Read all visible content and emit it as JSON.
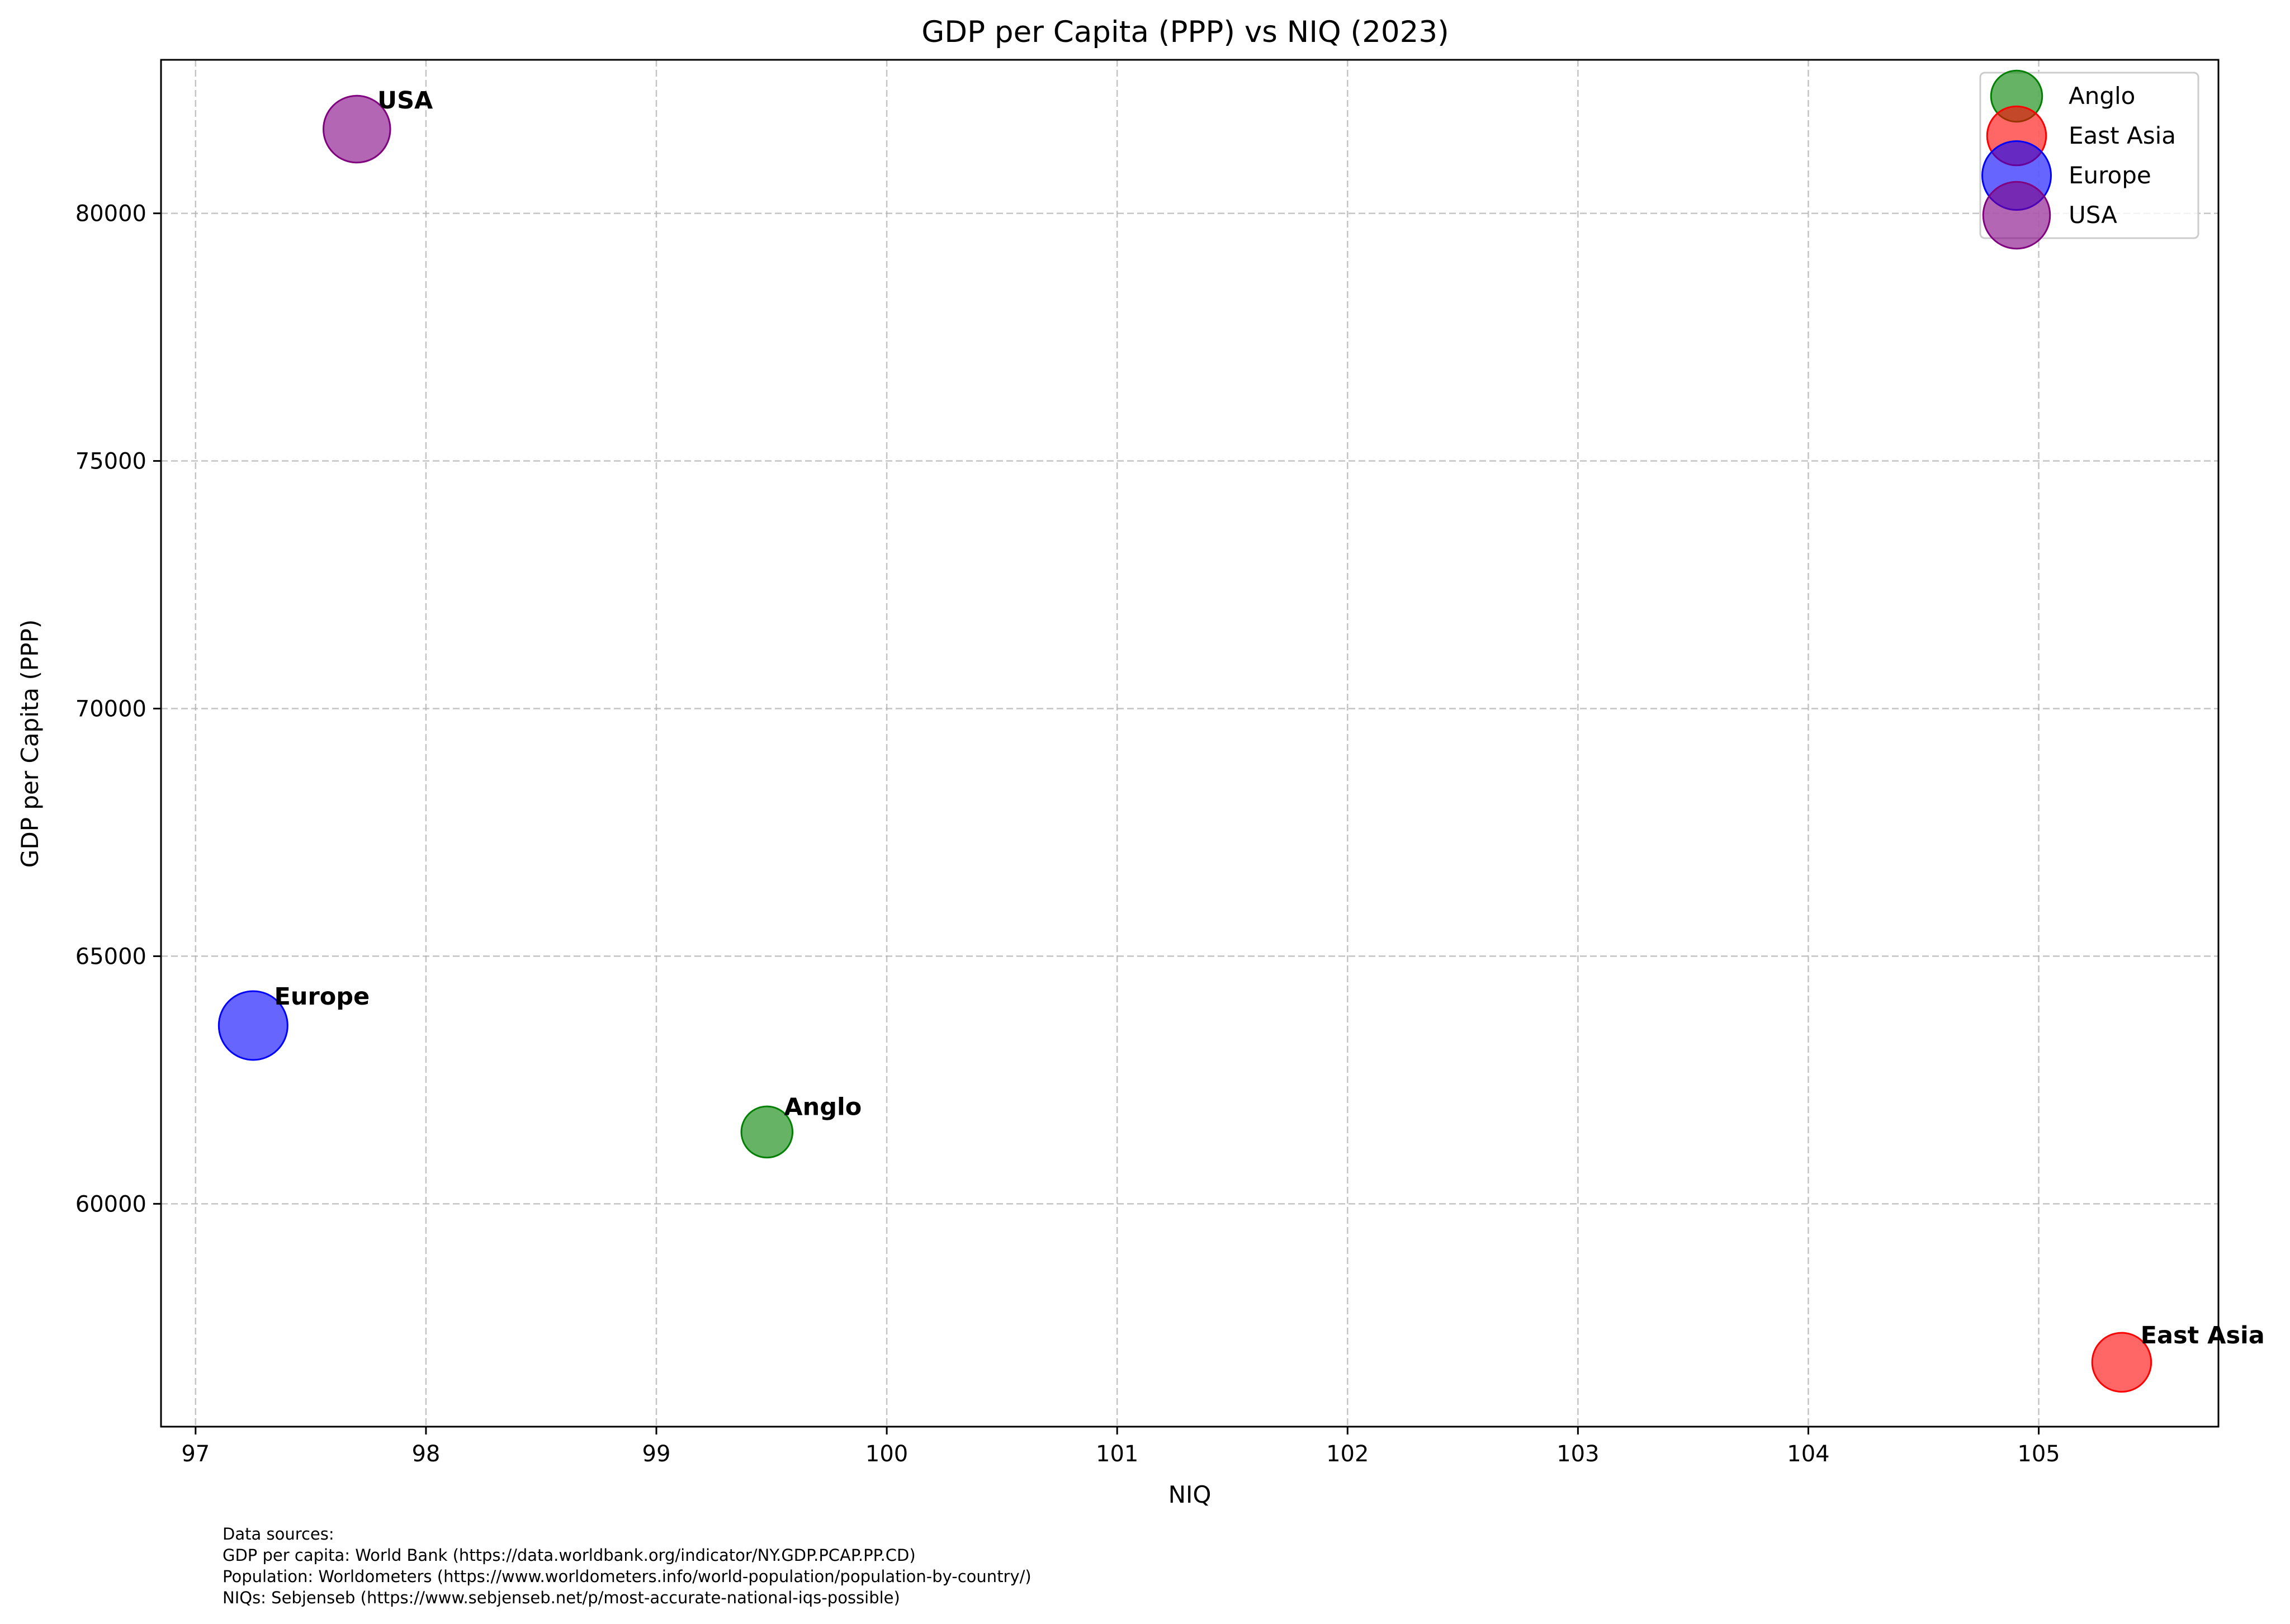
{
  "chart_data": {
    "type": "scatter",
    "title": "GDP per Capita (PPP) vs NIQ (2023)",
    "xlabel": "NIQ",
    "ylabel": "GDP per Capita (PPP)",
    "xlim": [
      96.85,
      105.78
    ],
    "ylim": [
      55500,
      83100
    ],
    "xticks": [
      "97",
      "98",
      "99",
      "100",
      "101",
      "102",
      "103",
      "104",
      "105"
    ],
    "yticks": [
      "60000",
      "65000",
      "70000",
      "75000",
      "80000"
    ],
    "grid": true,
    "legend_position": "top-right",
    "series": [
      {
        "name": "Anglo",
        "label": "Anglo",
        "x": 99.48,
        "y": 61450,
        "color": "#008000",
        "relative_size": 0.45
      },
      {
        "name": "East Asia",
        "label": "East Asia",
        "x": 105.36,
        "y": 56800,
        "color": "#ff0000",
        "relative_size": 0.65
      },
      {
        "name": "Europe",
        "label": "Europe",
        "x": 97.25,
        "y": 63600,
        "color": "#0000ff",
        "relative_size": 0.9
      },
      {
        "name": "USA",
        "label": "USA",
        "x": 97.7,
        "y": 81700,
        "color": "#800080",
        "relative_size": 0.85
      }
    ]
  },
  "footer": {
    "lines": [
      "Data sources:",
      "GDP per capita: World Bank (https://data.worldbank.org/indicator/NY.GDP.PCAP.PP.CD)",
      "Population: Worldometers (https://www.worldometers.info/world-population/population-by-country/)",
      "NIQs: Sebjenseb (https://www.sebjenseb.net/p/most-accurate-national-iqs-possible)"
    ]
  }
}
